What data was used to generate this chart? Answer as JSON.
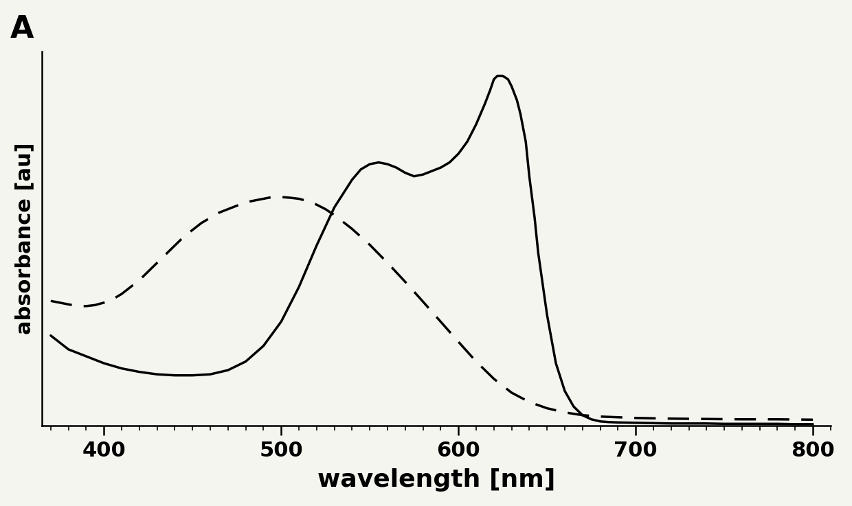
{
  "title_label": "A",
  "xlabel": "wavelength [nm]",
  "ylabel": "absorbance [au]",
  "xlim": [
    365,
    810
  ],
  "ylim": [
    0,
    1.08
  ],
  "xticks": [
    400,
    500,
    600,
    700,
    800
  ],
  "background_color": "#f5f5f0",
  "solid_line": {
    "x": [
      370,
      375,
      380,
      390,
      400,
      410,
      420,
      430,
      440,
      450,
      460,
      470,
      480,
      490,
      500,
      510,
      520,
      530,
      535,
      540,
      545,
      550,
      555,
      560,
      565,
      570,
      575,
      580,
      585,
      590,
      595,
      600,
      605,
      610,
      615,
      618,
      620,
      622,
      625,
      628,
      630,
      633,
      635,
      638,
      640,
      643,
      645,
      650,
      655,
      660,
      665,
      670,
      675,
      680,
      685,
      690,
      700,
      710,
      720,
      730,
      740,
      750,
      760,
      770,
      780,
      790,
      800
    ],
    "y": [
      0.26,
      0.24,
      0.22,
      0.2,
      0.18,
      0.165,
      0.155,
      0.148,
      0.145,
      0.145,
      0.148,
      0.16,
      0.185,
      0.23,
      0.3,
      0.4,
      0.52,
      0.63,
      0.67,
      0.71,
      0.74,
      0.755,
      0.76,
      0.755,
      0.745,
      0.73,
      0.72,
      0.725,
      0.735,
      0.745,
      0.76,
      0.785,
      0.82,
      0.87,
      0.93,
      0.97,
      1.0,
      1.01,
      1.01,
      1.0,
      0.98,
      0.94,
      0.9,
      0.82,
      0.72,
      0.6,
      0.5,
      0.32,
      0.18,
      0.1,
      0.055,
      0.03,
      0.018,
      0.012,
      0.01,
      0.009,
      0.008,
      0.007,
      0.006,
      0.006,
      0.006,
      0.005,
      0.005,
      0.005,
      0.005,
      0.004,
      0.004
    ]
  },
  "dashed_line": {
    "x": [
      370,
      375,
      380,
      385,
      390,
      395,
      400,
      405,
      410,
      415,
      420,
      425,
      430,
      435,
      440,
      445,
      450,
      455,
      460,
      465,
      470,
      475,
      480,
      485,
      490,
      495,
      500,
      505,
      510,
      515,
      520,
      525,
      530,
      540,
      550,
      560,
      570,
      580,
      590,
      600,
      610,
      620,
      630,
      640,
      650,
      660,
      670,
      680,
      690,
      700,
      720,
      740,
      760,
      780,
      800
    ],
    "y": [
      0.36,
      0.355,
      0.35,
      0.345,
      0.345,
      0.348,
      0.355,
      0.365,
      0.38,
      0.4,
      0.42,
      0.445,
      0.47,
      0.495,
      0.52,
      0.545,
      0.565,
      0.585,
      0.6,
      0.615,
      0.625,
      0.635,
      0.645,
      0.65,
      0.655,
      0.66,
      0.66,
      0.658,
      0.655,
      0.648,
      0.638,
      0.625,
      0.608,
      0.568,
      0.522,
      0.47,
      0.415,
      0.358,
      0.3,
      0.242,
      0.185,
      0.135,
      0.095,
      0.068,
      0.05,
      0.038,
      0.03,
      0.026,
      0.024,
      0.022,
      0.02,
      0.019,
      0.018,
      0.018,
      0.017
    ]
  },
  "line_color": "#000000",
  "line_width": 2.5,
  "dash_on": 9,
  "dash_off": 5
}
